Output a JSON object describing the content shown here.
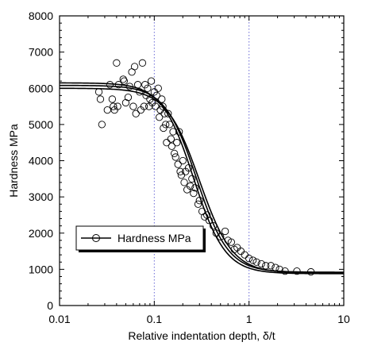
{
  "chart_data": {
    "type": "scatter",
    "xlabel": "Relative indentation depth, δ/t",
    "ylabel": "Hardness MPa",
    "x_scale": "log",
    "xlim": [
      0.01,
      10
    ],
    "ylim": [
      0,
      8000
    ],
    "x_ticks": [
      0.01,
      0.1,
      1,
      10
    ],
    "x_tick_labels": [
      "0.01",
      "0.1",
      "1",
      "10"
    ],
    "y_ticks": [
      0,
      1000,
      2000,
      3000,
      4000,
      5000,
      6000,
      7000,
      8000
    ],
    "y_tick_labels": [
      "0",
      "1000",
      "2000",
      "3000",
      "4000",
      "5000",
      "6000",
      "7000",
      "8000"
    ],
    "vertical_reference_lines_x": [
      0.1,
      1
    ],
    "legend": {
      "position": "lower-left",
      "entries": [
        "Hardness MPa"
      ]
    },
    "series": [
      {
        "name": "Hardness MPa",
        "marker": "open-circle",
        "points": [
          [
            0.026,
            5900
          ],
          [
            0.027,
            5700
          ],
          [
            0.028,
            5000
          ],
          [
            0.032,
            5400
          ],
          [
            0.034,
            6100
          ],
          [
            0.036,
            5700
          ],
          [
            0.037,
            5500
          ],
          [
            0.038,
            5400
          ],
          [
            0.04,
            6700
          ],
          [
            0.041,
            5500
          ],
          [
            0.042,
            6100
          ],
          [
            0.047,
            6250
          ],
          [
            0.048,
            6200
          ],
          [
            0.05,
            5600
          ],
          [
            0.053,
            5750
          ],
          [
            0.055,
            6050
          ],
          [
            0.058,
            6450
          ],
          [
            0.06,
            5500
          ],
          [
            0.062,
            6600
          ],
          [
            0.064,
            5300
          ],
          [
            0.067,
            6100
          ],
          [
            0.07,
            5900
          ],
          [
            0.072,
            5400
          ],
          [
            0.075,
            6700
          ],
          [
            0.078,
            5500
          ],
          [
            0.08,
            6100
          ],
          [
            0.082,
            5800
          ],
          [
            0.085,
            6000
          ],
          [
            0.088,
            5500
          ],
          [
            0.09,
            5700
          ],
          [
            0.093,
            6200
          ],
          [
            0.095,
            5600
          ],
          [
            0.1,
            5900
          ],
          [
            0.103,
            5500
          ],
          [
            0.106,
            5800
          ],
          [
            0.11,
            6000
          ],
          [
            0.113,
            5200
          ],
          [
            0.116,
            5400
          ],
          [
            0.12,
            5700
          ],
          [
            0.123,
            5500
          ],
          [
            0.125,
            4900
          ],
          [
            0.128,
            5300
          ],
          [
            0.132,
            5000
          ],
          [
            0.135,
            4500
          ],
          [
            0.14,
            5300
          ],
          [
            0.145,
            5000
          ],
          [
            0.15,
            4600
          ],
          [
            0.153,
            4400
          ],
          [
            0.158,
            4800
          ],
          [
            0.163,
            4200
          ],
          [
            0.168,
            4100
          ],
          [
            0.173,
            4500
          ],
          [
            0.178,
            3900
          ],
          [
            0.183,
            4800
          ],
          [
            0.188,
            3700
          ],
          [
            0.193,
            3600
          ],
          [
            0.2,
            4000
          ],
          [
            0.207,
            3400
          ],
          [
            0.214,
            3700
          ],
          [
            0.222,
            3200
          ],
          [
            0.23,
            3800
          ],
          [
            0.24,
            3300
          ],
          [
            0.25,
            3500
          ],
          [
            0.26,
            3100
          ],
          [
            0.27,
            3250
          ],
          [
            0.29,
            2800
          ],
          [
            0.3,
            2900
          ],
          [
            0.32,
            2600
          ],
          [
            0.34,
            2450
          ],
          [
            0.36,
            2500
          ],
          [
            0.38,
            2350
          ],
          [
            0.42,
            2200
          ],
          [
            0.45,
            2000
          ],
          [
            0.5,
            1900
          ],
          [
            0.56,
            2050
          ],
          [
            0.6,
            1800
          ],
          [
            0.65,
            1750
          ],
          [
            0.7,
            1550
          ],
          [
            0.75,
            1600
          ],
          [
            0.82,
            1500
          ],
          [
            0.9,
            1400
          ],
          [
            1.0,
            1300
          ],
          [
            1.1,
            1250
          ],
          [
            1.2,
            1200
          ],
          [
            1.35,
            1150
          ],
          [
            1.5,
            1100
          ],
          [
            1.7,
            1100
          ],
          [
            1.9,
            1050
          ],
          [
            2.1,
            1000
          ],
          [
            2.4,
            950
          ],
          [
            3.2,
            950
          ],
          [
            4.5,
            930
          ]
        ]
      }
    ],
    "fit_curves": [
      {
        "top": 6150,
        "bottom": 880,
        "midpoint": 0.26,
        "slope": 2.6
      },
      {
        "top": 6080,
        "bottom": 920,
        "midpoint": 0.28,
        "slope": 2.6
      },
      {
        "top": 6000,
        "bottom": 900,
        "midpoint": 0.3,
        "slope": 2.5
      }
    ]
  }
}
